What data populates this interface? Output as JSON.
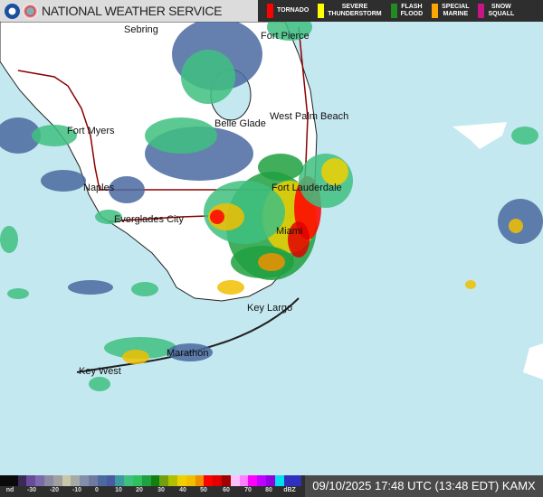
{
  "header": {
    "title": "NATIONAL WEATHER SERVICE",
    "logos": [
      "noaa-logo",
      "nws-logo"
    ],
    "warnings": [
      {
        "label": "TORNADO",
        "color": "#ff0000"
      },
      {
        "label": "SEVERE\nTHUNDERSTORM",
        "color": "#ffff00"
      },
      {
        "label": "FLASH\nFLOOD",
        "color": "#228b22"
      },
      {
        "label": "SPECIAL\nMARINE",
        "color": "#ffa500"
      },
      {
        "label": "SNOW\nSQUALL",
        "color": "#c71585"
      }
    ]
  },
  "map": {
    "cities": [
      "Sebring",
      "Fort Pierce",
      "Belle Glade",
      "West Palm Beach",
      "Fort Myers",
      "Naples",
      "Fort Lauderdale",
      "Everglades City",
      "Miami",
      "Key Largo",
      "Marathon",
      "Key West"
    ],
    "colors": {
      "water": "#c4e8f0",
      "land": "#ffffff",
      "roads": "#8b0000"
    }
  },
  "legend": {
    "ticks": [
      "nd",
      "-30",
      "-20",
      "-10",
      "0",
      "10",
      "20",
      "30",
      "40",
      "50",
      "60",
      "70",
      "80",
      "dBZ"
    ],
    "colors": [
      "#0a0a0a",
      "#0a0a0a",
      "#3a2a5a",
      "#6a4a9a",
      "#7a6aaa",
      "#8a8aa0",
      "#a0a0a0",
      "#c8c8a8",
      "#a8a8a8",
      "#8090a8",
      "#707aa0",
      "#4a6aa0",
      "#4a5aa0",
      "#3a9aa0",
      "#40c080",
      "#30c060",
      "#20a040",
      "#108010",
      "#70a010",
      "#b0c000",
      "#f0d000",
      "#f0c000",
      "#f09000",
      "#ff0000",
      "#e00000",
      "#a00000",
      "#ffc0ff",
      "#ff80ff",
      "#ff00ff",
      "#c000ff",
      "#9000e0",
      "#00e0f0",
      "#3030c0",
      "#3030c0"
    ],
    "timestamp": "09/10/2025 17:48 UTC (13:48 EDT) KAMX"
  }
}
